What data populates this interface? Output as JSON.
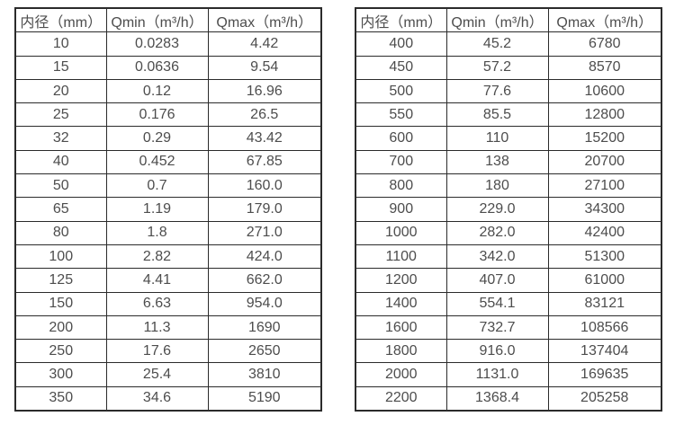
{
  "tables": [
    {
      "name": "small-diameter-flow-table",
      "columns": [
        "内径（mm）",
        "Qmin（m³/h）",
        "Qmax（m³/h）"
      ],
      "rows": [
        [
          "10",
          "0.0283",
          "4.42"
        ],
        [
          "15",
          "0.0636",
          "9.54"
        ],
        [
          "20",
          "0.12",
          "16.96"
        ],
        [
          "25",
          "0.176",
          "26.5"
        ],
        [
          "32",
          "0.29",
          "43.42"
        ],
        [
          "40",
          "0.452",
          "67.85"
        ],
        [
          "50",
          "0.7",
          "160.0"
        ],
        [
          "65",
          "1.19",
          "179.0"
        ],
        [
          "80",
          "1.8",
          "271.0"
        ],
        [
          "100",
          "2.82",
          "424.0"
        ],
        [
          "125",
          "4.41",
          "662.0"
        ],
        [
          "150",
          "6.63",
          "954.0"
        ],
        [
          "200",
          "11.3",
          "1690"
        ],
        [
          "250",
          "17.6",
          "2650"
        ],
        [
          "300",
          "25.4",
          "3810"
        ],
        [
          "350",
          "34.6",
          "5190"
        ]
      ]
    },
    {
      "name": "large-diameter-flow-table",
      "columns": [
        "内径（mm）",
        "Qmin（m³/h）",
        "Qmax（m³/h）"
      ],
      "rows": [
        [
          "400",
          "45.2",
          "6780"
        ],
        [
          "450",
          "57.2",
          "8570"
        ],
        [
          "500",
          "77.6",
          "10600"
        ],
        [
          "550",
          "85.5",
          "12800"
        ],
        [
          "600",
          "110",
          "15200"
        ],
        [
          "700",
          "138",
          "20700"
        ],
        [
          "800",
          "180",
          "27100"
        ],
        [
          "900",
          "229.0",
          "34300"
        ],
        [
          "1000",
          "282.0",
          "42400"
        ],
        [
          "1100",
          "342.0",
          "51300"
        ],
        [
          "1200",
          "407.0",
          "61000"
        ],
        [
          "1400",
          "554.1",
          "83121"
        ],
        [
          "1600",
          "732.7",
          "108566"
        ],
        [
          "1800",
          "916.0",
          "137404"
        ],
        [
          "2000",
          "1131.0",
          "169635"
        ],
        [
          "2200",
          "1368.4",
          "205258"
        ]
      ]
    }
  ],
  "colors": {
    "border": "#2b2b2b",
    "text": "#4d4d4d",
    "background": "#ffffff"
  }
}
